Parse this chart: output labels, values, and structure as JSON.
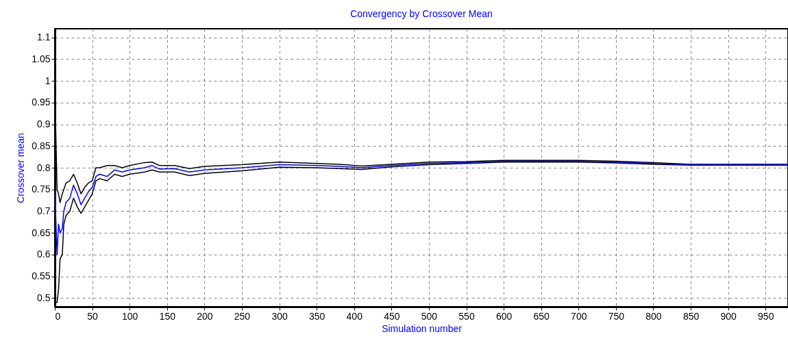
{
  "chart_data": {
    "type": "line",
    "title": "Convergency by Crossover Mean",
    "xlabel": "Simulation number",
    "ylabel": "Crossover mean",
    "x": [
      0,
      3,
      5,
      7,
      10,
      12,
      15,
      20,
      25,
      30,
      35,
      40,
      45,
      50,
      55,
      60,
      70,
      80,
      90,
      100,
      120,
      130,
      140,
      160,
      180,
      200,
      250,
      300,
      350,
      380,
      410,
      450,
      500,
      550,
      600,
      650,
      700,
      750,
      800,
      850,
      900,
      980
    ],
    "series": [
      {
        "color": "#0000ff",
        "values": [
          0.75,
          0.6,
          0.67,
          0.65,
          0.66,
          0.7,
          0.72,
          0.73,
          0.76,
          0.74,
          0.715,
          0.73,
          0.745,
          0.755,
          0.78,
          0.785,
          0.78,
          0.795,
          0.79,
          0.795,
          0.8,
          0.805,
          0.797,
          0.798,
          0.79,
          0.795,
          0.8,
          0.807,
          0.805,
          0.803,
          0.8,
          0.805,
          0.81,
          0.812,
          0.815,
          0.815,
          0.815,
          0.813,
          0.81,
          0.807,
          0.807,
          0.807
        ]
      },
      {
        "color": "#000000",
        "values": [
          0.985,
          0.75,
          0.74,
          0.72,
          0.74,
          0.75,
          0.765,
          0.77,
          0.785,
          0.765,
          0.74,
          0.755,
          0.765,
          0.77,
          0.8,
          0.8,
          0.805,
          0.805,
          0.8,
          0.805,
          0.812,
          0.813,
          0.805,
          0.805,
          0.798,
          0.803,
          0.807,
          0.813,
          0.81,
          0.808,
          0.804,
          0.808,
          0.813,
          0.814,
          0.817,
          0.817,
          0.817,
          0.815,
          0.812,
          0.808,
          0.808,
          0.808
        ]
      },
      {
        "color": "#000000",
        "values": [
          0.49,
          0.49,
          0.52,
          0.59,
          0.6,
          0.67,
          0.69,
          0.7,
          0.73,
          0.71,
          0.695,
          0.71,
          0.725,
          0.74,
          0.77,
          0.775,
          0.77,
          0.785,
          0.78,
          0.785,
          0.79,
          0.795,
          0.79,
          0.79,
          0.782,
          0.787,
          0.793,
          0.801,
          0.8,
          0.798,
          0.796,
          0.802,
          0.807,
          0.81,
          0.813,
          0.813,
          0.813,
          0.811,
          0.808,
          0.806,
          0.806,
          0.806
        ]
      }
    ],
    "xlim": [
      0,
      980
    ],
    "xticks": [
      0,
      50,
      100,
      150,
      200,
      250,
      300,
      350,
      400,
      450,
      500,
      550,
      600,
      650,
      700,
      750,
      800,
      850,
      900,
      950
    ],
    "ylim": [
      0.48,
      1.12
    ],
    "yticks": [
      0.5,
      0.55,
      0.6,
      0.65,
      0.7,
      0.75,
      0.8,
      0.85,
      0.9,
      0.95,
      1,
      1.05,
      1.1
    ],
    "grid": true,
    "line_style": "solid",
    "marker": "none"
  }
}
